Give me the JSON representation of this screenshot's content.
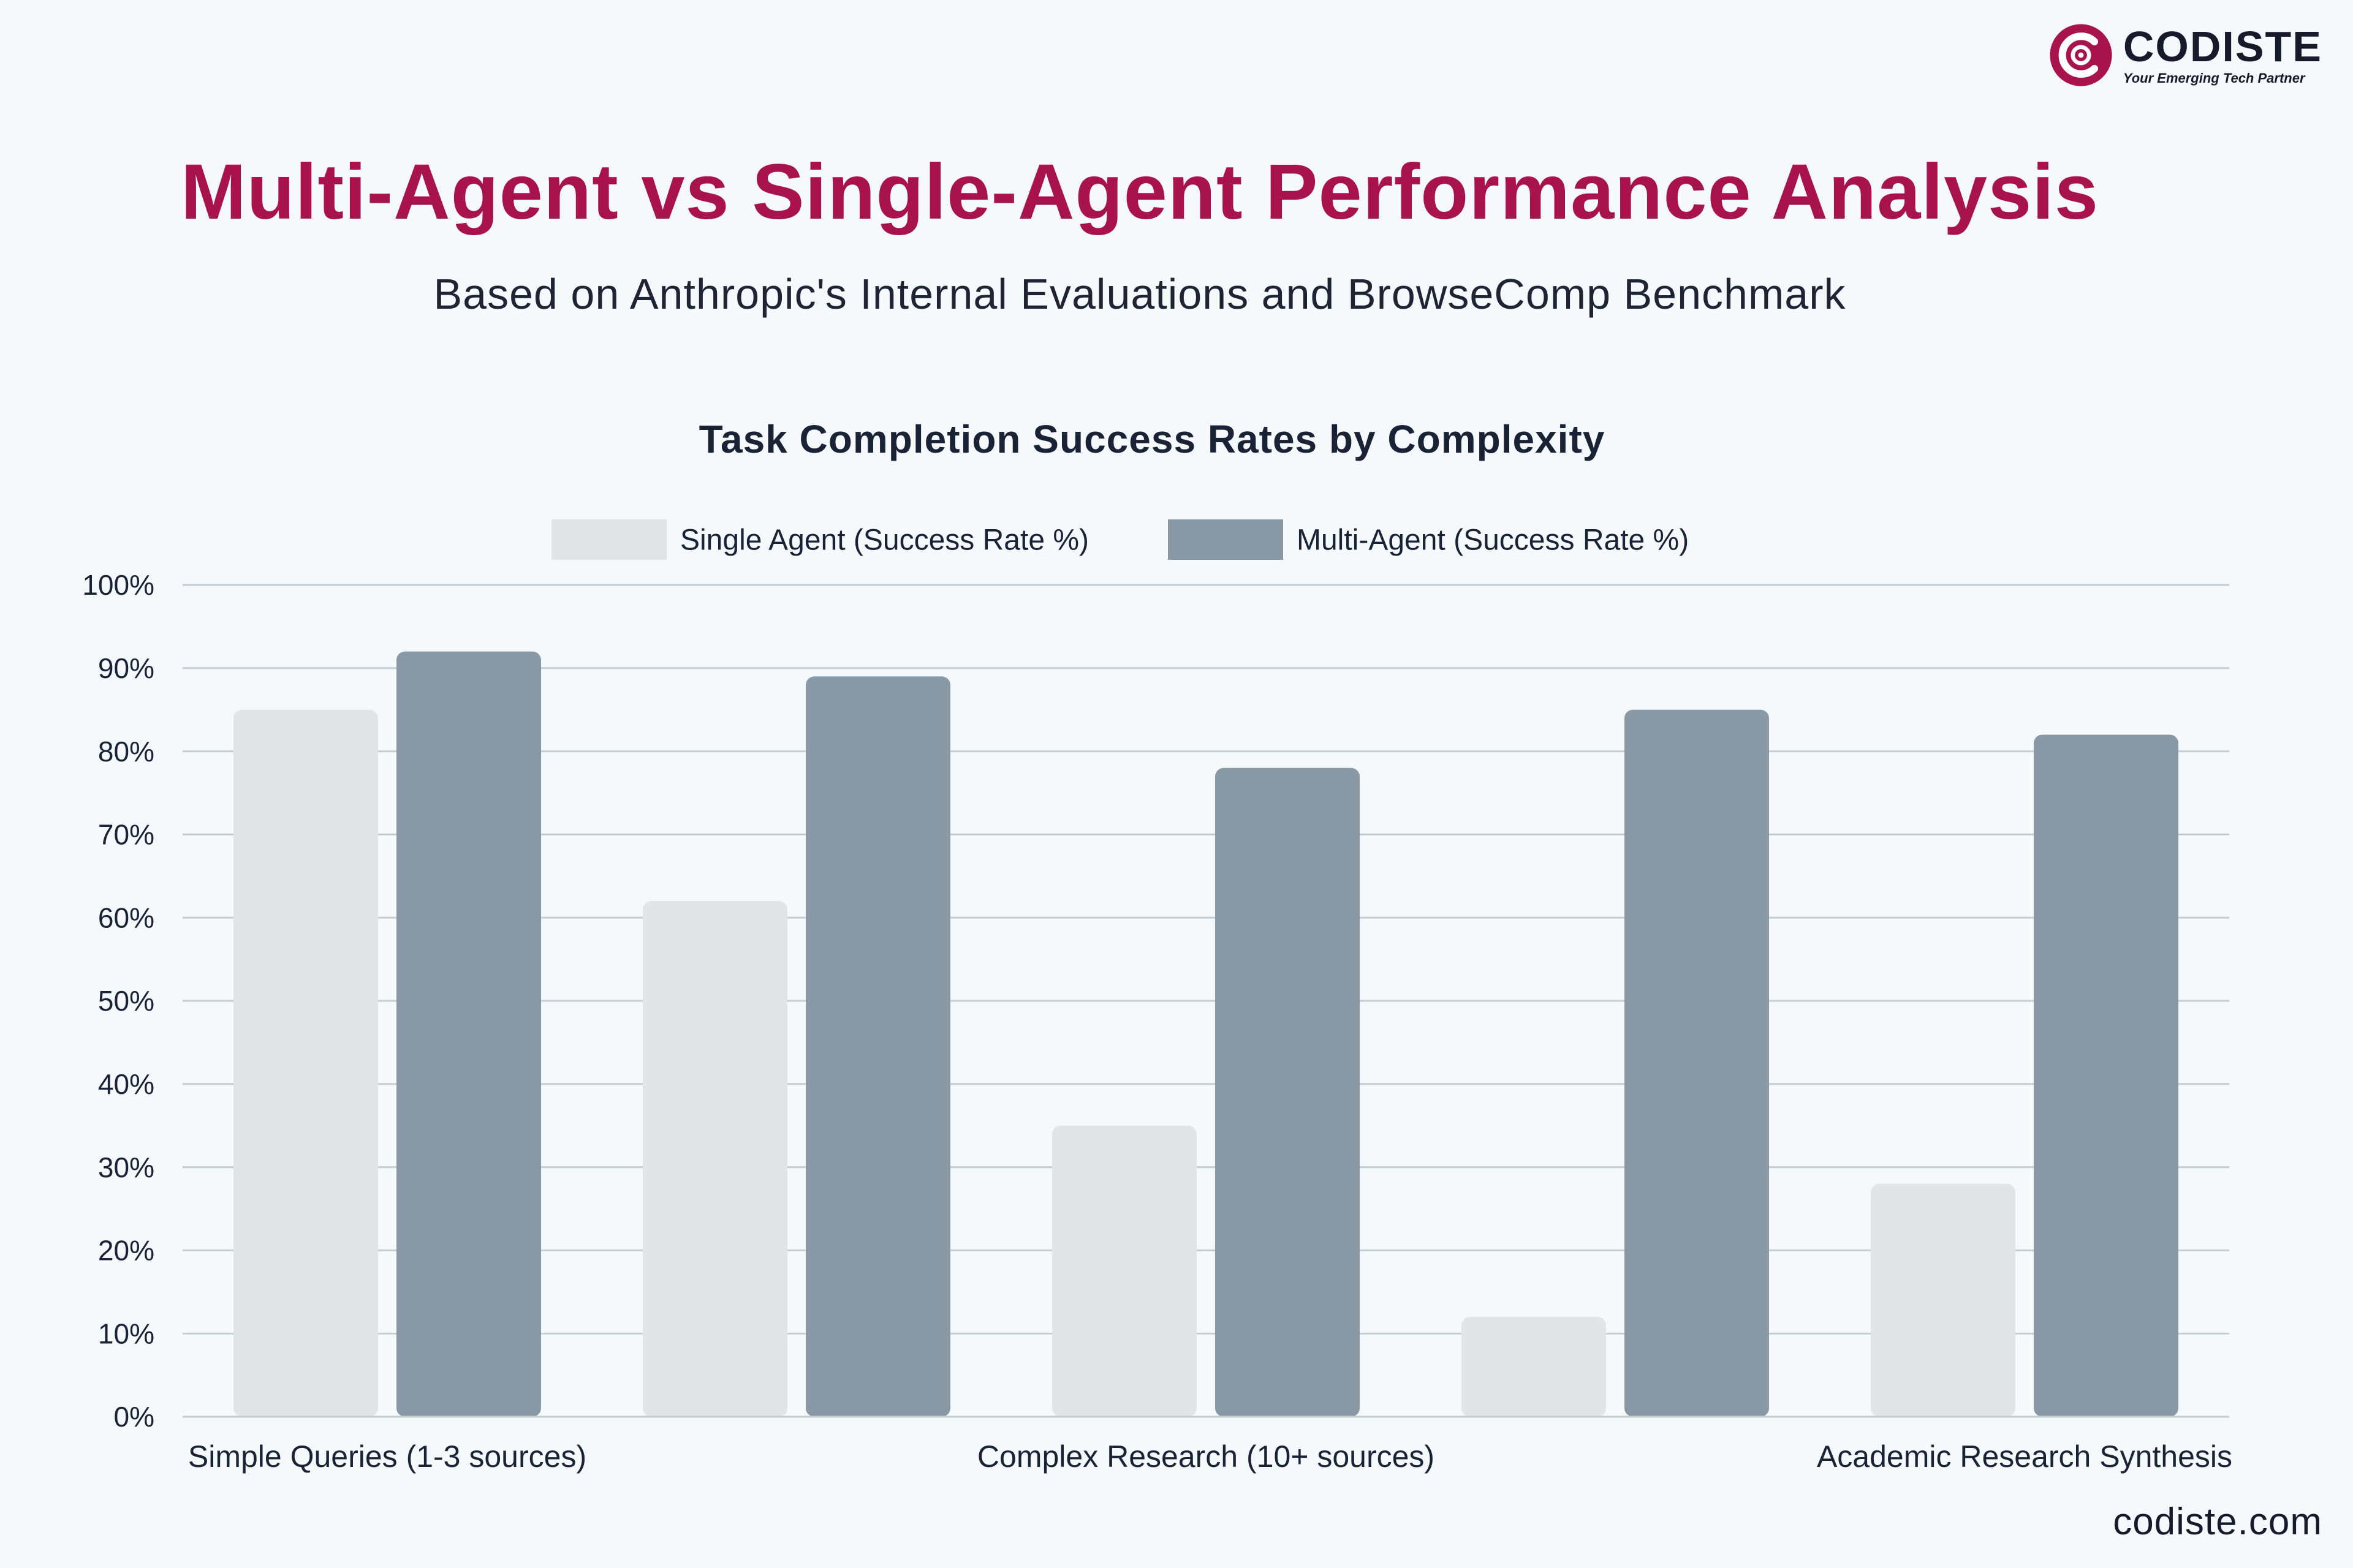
{
  "brand": {
    "name": "CODISTE",
    "tagline": "Your Emerging Tech Partner",
    "accent": "#a8134d",
    "logo_icon": "codiste-c-logo-icon",
    "website": "codiste.com"
  },
  "title": "Multi-Agent vs Single-Agent Performance Analysis",
  "subtitle": "Based on Anthropic's Internal Evaluations and BrowseComp Benchmark",
  "chart_data": {
    "type": "bar",
    "title": "Task Completion Success Rates by Complexity",
    "xlabel": "",
    "ylabel": "",
    "ylim": [
      0,
      100
    ],
    "yticks": [
      "0%",
      "10%",
      "20%",
      "30%",
      "40%",
      "50%",
      "60%",
      "70%",
      "80%",
      "90%",
      "100%"
    ],
    "grid": true,
    "legend_position": "top-center",
    "categories": [
      "Simple Queries (1-3 sources)",
      "",
      "Complex Research (10+ sources)",
      "",
      "Academic Research Synthesis"
    ],
    "series": [
      {
        "name": "Single Agent (Success Rate %)",
        "color": "#e1e5e8",
        "values": [
          85,
          62,
          35,
          12,
          28
        ]
      },
      {
        "name": "Multi-Agent (Success Rate %)",
        "color": "#8899a5",
        "values": [
          92,
          89,
          78,
          85,
          82
        ]
      }
    ]
  }
}
